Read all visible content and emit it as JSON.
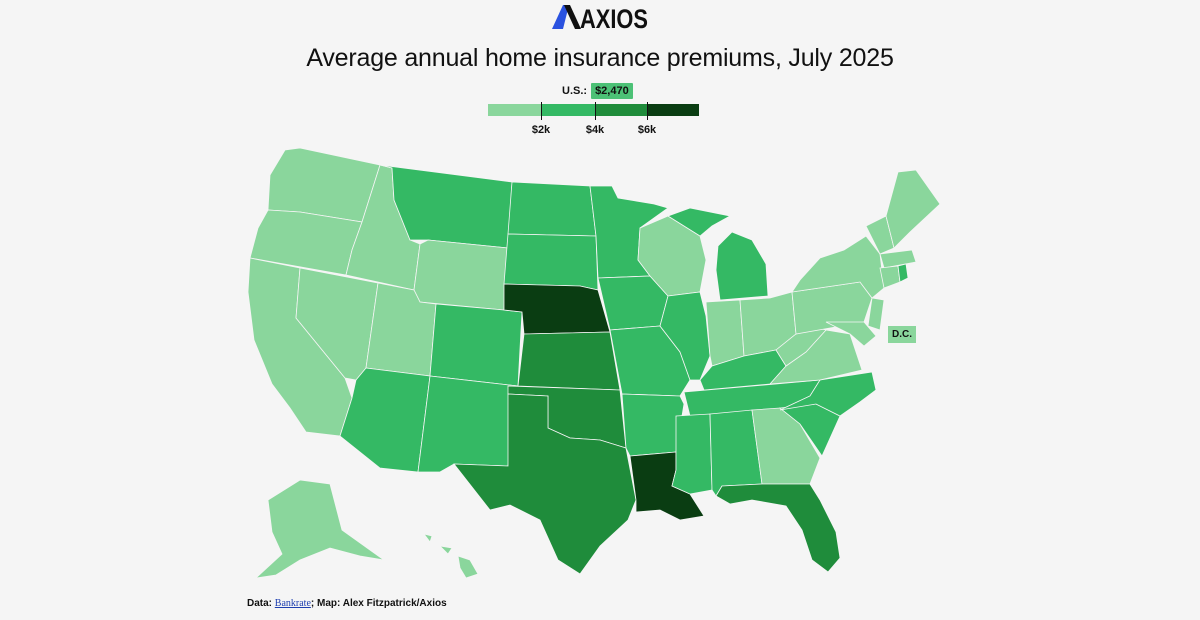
{
  "brand": {
    "logo_text": "AXIOS"
  },
  "title": "Average annual home insurance premiums, July 2025",
  "legend": {
    "us_label": "U.S.:",
    "us_value": "$2,470",
    "ticks": [
      "$2k",
      "$4k",
      "$6k"
    ],
    "colors": [
      "#8ad69c",
      "#34b964",
      "#1f8c3b",
      "#0a3d12"
    ]
  },
  "dc_label": "D.C.",
  "source": {
    "prefix": "Data: ",
    "link_text": "Bankrate",
    "suffix": "; Map: Alex Fitzpatrick/Axios"
  },
  "colors": {
    "background": "#f5f5f5",
    "tier1": "#8ad69c",
    "tier2": "#34b964",
    "tier3": "#1f8c3b",
    "tier4": "#0a3d12"
  }
}
